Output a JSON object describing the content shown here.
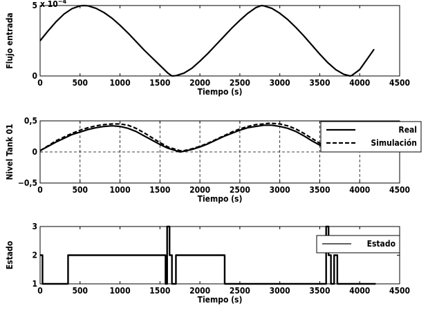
{
  "chart_data": [
    {
      "type": "line",
      "title": "",
      "xlabel": "Tiempo (s)",
      "ylabel": "Flujo entrada",
      "scale_note": "x 10",
      "scale_exponent": "−4",
      "xlim": [
        0,
        4500
      ],
      "ylim": [
        0,
        5
      ],
      "xticks": [
        "0",
        "500",
        "1000",
        "1500",
        "2000",
        "2500",
        "3000",
        "3500",
        "4000",
        "4500"
      ],
      "yticks": [
        "0",
        "5"
      ],
      "grid": false,
      "series": [
        {
          "x": [
            0,
            100,
            200,
            300,
            400,
            500,
            550,
            600,
            700,
            800,
            900,
            1000,
            1100,
            1200,
            1300,
            1400,
            1500,
            1600,
            1650,
            1700,
            1800,
            1900,
            2000,
            2100,
            2200,
            2300,
            2400,
            2500,
            2600,
            2700,
            2770,
            2800,
            2900,
            3000,
            3100,
            3200,
            3300,
            3400,
            3500,
            3600,
            3700,
            3800,
            3880,
            3900,
            4000,
            4100,
            4180
          ],
          "y": [
            2.5,
            3.2,
            3.85,
            4.4,
            4.78,
            4.98,
            5.0,
            4.98,
            4.8,
            4.5,
            4.1,
            3.6,
            3.05,
            2.45,
            1.85,
            1.3,
            0.75,
            0.2,
            0.0,
            0.02,
            0.2,
            0.55,
            1.05,
            1.6,
            2.2,
            2.8,
            3.4,
            3.95,
            4.45,
            4.85,
            5.0,
            4.98,
            4.8,
            4.45,
            4.0,
            3.45,
            2.85,
            2.2,
            1.55,
            0.95,
            0.45,
            0.12,
            0.0,
            0.03,
            0.45,
            1.25,
            1.9
          ]
        }
      ]
    },
    {
      "type": "line",
      "title": "",
      "xlabel": "Tiempo (s)",
      "ylabel": "Nivel Tank 01",
      "xlim": [
        0,
        4500
      ],
      "ylim": [
        -0.5,
        0.5
      ],
      "xticks": [
        "0",
        "500",
        "1000",
        "1500",
        "2000",
        "2500",
        "3000",
        "3500",
        "4000",
        "4500"
      ],
      "yticks": [
        "−0,5",
        "0",
        "0,5"
      ],
      "grid": true,
      "legend_position": "top-right",
      "series": [
        {
          "name": "Real",
          "style": "solid",
          "x": [
            0,
            100,
            200,
            300,
            400,
            500,
            600,
            700,
            800,
            900,
            1000,
            1100,
            1200,
            1300,
            1400,
            1500,
            1600,
            1700,
            1750,
            1800,
            1900,
            2000,
            2100,
            2200,
            2300,
            2400,
            2500,
            2600,
            2700,
            2800,
            2850,
            2900,
            3000,
            3100,
            3200,
            3300,
            3400,
            3500,
            3600
          ],
          "y": [
            0.02,
            0.09,
            0.16,
            0.22,
            0.28,
            0.32,
            0.36,
            0.39,
            0.41,
            0.42,
            0.41,
            0.38,
            0.33,
            0.26,
            0.19,
            0.12,
            0.06,
            0.02,
            0.0,
            0.01,
            0.04,
            0.08,
            0.13,
            0.19,
            0.25,
            0.3,
            0.35,
            0.39,
            0.41,
            0.43,
            0.43,
            0.43,
            0.41,
            0.38,
            0.33,
            0.26,
            0.18,
            0.11,
            0.05
          ]
        },
        {
          "name": "Simulación",
          "style": "dashed",
          "x": [
            0,
            100,
            200,
            300,
            400,
            500,
            600,
            700,
            800,
            900,
            1000,
            1100,
            1200,
            1300,
            1400,
            1500,
            1600,
            1700,
            1750,
            1800,
            1900,
            2000,
            2100,
            2200,
            2300,
            2400,
            2500,
            2600,
            2700,
            2800,
            2850,
            2900,
            3000,
            3100,
            3200,
            3300,
            3400,
            3500,
            3600
          ],
          "y": [
            0.02,
            0.1,
            0.18,
            0.24,
            0.3,
            0.35,
            0.39,
            0.42,
            0.44,
            0.45,
            0.45,
            0.43,
            0.38,
            0.31,
            0.23,
            0.15,
            0.08,
            0.04,
            0.02,
            0.02,
            0.05,
            0.09,
            0.14,
            0.2,
            0.26,
            0.32,
            0.37,
            0.41,
            0.44,
            0.45,
            0.46,
            0.46,
            0.45,
            0.42,
            0.37,
            0.3,
            0.22,
            0.14,
            0.07
          ]
        }
      ]
    },
    {
      "type": "line",
      "title": "",
      "xlabel": "Tiempo (s)",
      "ylabel": "Estado",
      "xlim": [
        0,
        4500
      ],
      "ylim": [
        1,
        3
      ],
      "xticks": [
        "0",
        "500",
        "1000",
        "1500",
        "2000",
        "2500",
        "3000",
        "3500",
        "4000",
        "4500"
      ],
      "yticks": [
        "1",
        "2",
        "3"
      ],
      "grid": false,
      "legend_position": "top-right",
      "series": [
        {
          "name": "Estado",
          "step": true,
          "x": [
            0,
            30,
            30,
            350,
            350,
            1570,
            1570,
            1590,
            1590,
            1620,
            1620,
            1650,
            1650,
            1700,
            1700,
            2310,
            2310,
            3580,
            3580,
            3610,
            3610,
            3640,
            3640,
            3680,
            3680,
            3720,
            3720,
            4200
          ],
          "y": [
            2,
            2,
            1,
            1,
            2,
            2,
            1,
            1,
            3,
            3,
            2,
            2,
            1,
            1,
            2,
            2,
            1,
            1,
            3,
            3,
            2,
            2,
            1,
            1,
            2,
            2,
            1,
            1
          ]
        }
      ]
    }
  ]
}
